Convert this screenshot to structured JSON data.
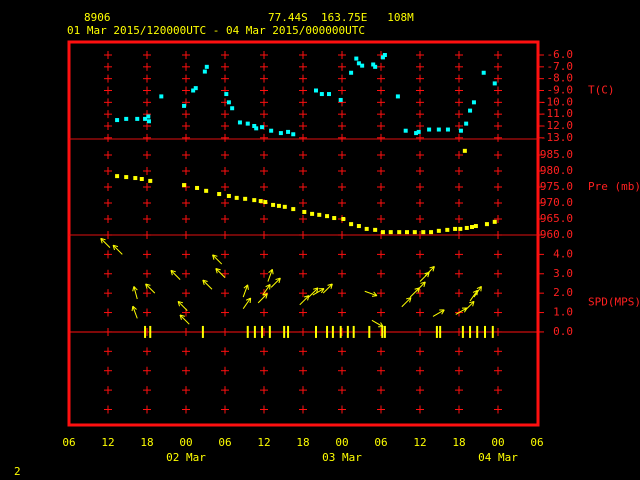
{
  "header": {
    "station": "8906",
    "location": "77.44S  163.75E   108M",
    "period": "01 Mar 2015/120000UTC - 04 Mar 2015/000000UTC"
  },
  "page_number": "2",
  "chart_data": [
    {
      "type": "scatter",
      "y_label": "T(C)",
      "color": "#00ffff",
      "x": [
        13.4,
        14.8,
        16.5,
        17.7,
        18.2,
        18.3,
        20.2,
        23.7,
        25.1,
        25.5,
        26.9,
        27.2,
        30.2,
        30.6,
        31.1,
        32.3,
        33.5,
        34.5,
        34.8,
        35.7,
        37.1,
        38.6,
        39.7,
        40.5,
        44.0,
        44.9,
        46.0,
        47.8,
        49.4,
        50.2,
        50.6,
        51.1,
        52.8,
        53.1,
        54.3,
        54.6,
        56.6,
        57.8,
        59.4,
        59.8,
        61.4,
        62.9,
        64.3,
        66.3,
        67.1,
        67.7,
        68.3,
        69.8,
        71.5
      ],
      "values": [
        -11.5,
        -11.4,
        -11.4,
        -11.4,
        -11.2,
        -11.6,
        -9.5,
        -10.3,
        -9.0,
        -8.8,
        -7.4,
        -7.0,
        -9.3,
        -10.0,
        -10.5,
        -11.7,
        -11.8,
        -12.0,
        -12.2,
        -12.1,
        -12.4,
        -12.6,
        -12.5,
        -12.7,
        -9.0,
        -9.3,
        -9.3,
        -9.8,
        -7.5,
        -6.3,
        -6.7,
        -6.9,
        -6.8,
        -7.0,
        -6.2,
        -6.0,
        -9.5,
        -12.4,
        -12.6,
        -12.5,
        -12.3,
        -12.3,
        -12.3,
        -12.4,
        -11.8,
        -10.7,
        -10.0,
        -7.5,
        -8.4
      ],
      "ylim": [
        -13.1,
        -4.9
      ],
      "yticks": [
        {
          "value": -6,
          "label": "-6.0"
        },
        {
          "value": -7,
          "label": "-7.0"
        },
        {
          "value": -8,
          "label": "-8.0"
        },
        {
          "value": -9,
          "label": "-9.0"
        },
        {
          "value": -10,
          "label": "-10.0"
        },
        {
          "value": -11,
          "label": "-11.0"
        },
        {
          "value": -12,
          "label": "-12.0"
        },
        {
          "value": -13,
          "label": "-13.0"
        }
      ]
    },
    {
      "type": "scatter",
      "y_label": "Pre (mb)",
      "color": "#ffff00",
      "x": [
        13.4,
        14.8,
        16.2,
        17.2,
        18.5,
        23.7,
        25.7,
        27.1,
        29.1,
        30.6,
        31.8,
        33.1,
        34.5,
        35.5,
        36.2,
        37.4,
        38.3,
        39.2,
        40.5,
        42.2,
        43.4,
        44.5,
        45.7,
        46.8,
        48.2,
        49.4,
        50.6,
        51.8,
        53.1,
        54.3,
        55.5,
        56.8,
        58.0,
        59.2,
        60.5,
        61.7,
        62.9,
        64.2,
        65.4,
        66.2,
        66.9,
        67.2,
        68.0,
        68.6,
        70.3,
        71.5
      ],
      "values": [
        978.4,
        978.1,
        977.8,
        977.5,
        976.9,
        975.6,
        974.7,
        973.8,
        972.8,
        972.2,
        971.6,
        971.3,
        970.9,
        970.6,
        970.3,
        969.4,
        969.1,
        968.8,
        968.1,
        967.2,
        966.6,
        966.3,
        965.9,
        965.3,
        965.0,
        963.4,
        962.8,
        961.9,
        961.6,
        960.9,
        960.9,
        960.9,
        960.9,
        960.9,
        960.9,
        960.9,
        961.3,
        961.6,
        961.9,
        961.9,
        986.3,
        962.2,
        962.5,
        962.8,
        963.4,
        964.1
      ],
      "ylim": [
        960,
        990
      ],
      "yticks": [
        {
          "value": 985,
          "label": "985.0"
        },
        {
          "value": 980,
          "label": "980.0"
        },
        {
          "value": 975,
          "label": "975.0"
        },
        {
          "value": 970,
          "label": "970.0"
        },
        {
          "value": 965,
          "label": "965.0"
        },
        {
          "value": 960,
          "label": "960.0"
        }
      ]
    },
    {
      "type": "vector",
      "y_label": "SPD(MPS)",
      "color": "#ffff00",
      "x": [
        12.3,
        14.2,
        16.5,
        16.5,
        17.7,
        18.5,
        19.2,
        23.1,
        24.2,
        24.5,
        26.6,
        28.0,
        29.5,
        30.0,
        32.8,
        32.8,
        33.5,
        34.6,
        35.1,
        35.8,
        35.7,
        36.6,
        36.9,
        37.1,
        39.1,
        39.7,
        41.5,
        42.9,
        43.5,
        44.0,
        45.1,
        45.7,
        46.6,
        47.8,
        48.9,
        49.8,
        51.5,
        52.6,
        52.2,
        54.2,
        54.6,
        57.2,
        58.5,
        59.4,
        60.0,
        60.8,
        62.0,
        62.6,
        63.1,
        65.5,
        66.6,
        66.9,
        67.7,
        67.7,
        68.3,
        68.8,
        70.0,
        71.2
      ],
      "values": [
        4.35,
        4.0,
        1.7,
        0.7,
        0,
        0,
        2.0,
        2.7,
        1.1,
        0.4,
        0,
        2.2,
        3.5,
        2.8,
        1.8,
        1.2,
        0,
        0,
        1.5,
        1.9,
        0,
        2.6,
        0,
        2.3,
        0,
        0,
        1.4,
        1.8,
        1.9,
        0,
        2.0,
        0,
        0,
        0,
        0,
        0,
        2.1,
        0.6,
        0,
        0,
        0,
        1.3,
        1.8,
        2.1,
        2.6,
        2.9,
        0.8,
        0,
        0,
        0.9,
        0,
        1.1,
        0,
        1.6,
        1.8,
        0,
        0,
        0
      ],
      "directions": [
        135,
        135,
        165,
        160,
        null,
        null,
        135,
        135,
        135,
        135,
        null,
        135,
        135,
        135,
        200,
        215,
        null,
        null,
        225,
        215,
        null,
        200,
        null,
        225,
        null,
        null,
        225,
        225,
        240,
        null,
        225,
        null,
        null,
        null,
        null,
        null,
        290,
        300,
        null,
        null,
        null,
        225,
        225,
        225,
        225,
        225,
        240,
        null,
        null,
        240,
        null,
        225,
        null,
        215,
        215,
        null,
        null,
        null
      ],
      "ylim": [
        -4.8,
        5.0
      ],
      "yticks": [
        {
          "value": 4,
          "label": "4.0"
        },
        {
          "value": 3,
          "label": "3.0"
        },
        {
          "value": 2,
          "label": "2.0"
        },
        {
          "value": 1,
          "label": "1.0"
        },
        {
          "value": 0,
          "label": "0.0"
        }
      ],
      "xlim": [
        6,
        78
      ],
      "xticks": [
        {
          "value": 6,
          "label": "06"
        },
        {
          "value": 12,
          "label": "12"
        },
        {
          "value": 18,
          "label": "18"
        },
        {
          "value": 24,
          "label": "00"
        },
        {
          "value": 30,
          "label": "06"
        },
        {
          "value": 36,
          "label": "12"
        },
        {
          "value": 42,
          "label": "18"
        },
        {
          "value": 48,
          "label": "00"
        },
        {
          "value": 54,
          "label": "06"
        },
        {
          "value": 60,
          "label": "12"
        },
        {
          "value": 66,
          "label": "18"
        },
        {
          "value": 72,
          "label": "00"
        },
        {
          "value": 78,
          "label": "06"
        }
      ],
      "date_labels": [
        {
          "value": 24,
          "label": "02 Mar"
        },
        {
          "value": 48,
          "label": "03 Mar"
        },
        {
          "value": 72,
          "label": "04 Mar"
        }
      ]
    }
  ]
}
